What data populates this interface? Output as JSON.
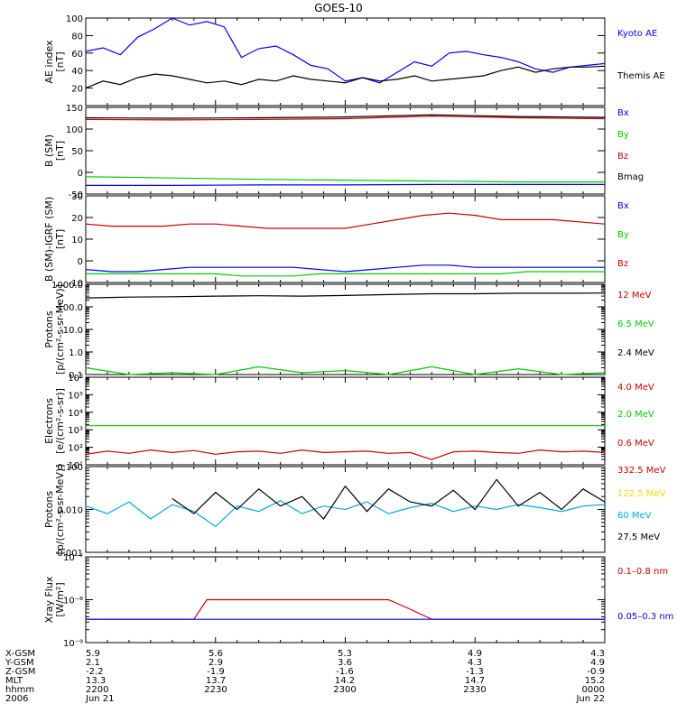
{
  "title": "GOES-10",
  "colors": {
    "black": "#000000",
    "blue": "#0000ff",
    "green": "#00cc00",
    "red": "#cc0000",
    "yellow": "#ffd700",
    "cyan": "#00aadd"
  },
  "chart_data": [
    {
      "type": "line",
      "panel": "ae",
      "ylabel": [
        "AE index",
        "[nT]"
      ],
      "ylim": [
        0,
        100
      ],
      "yticks": [
        20,
        40,
        60,
        80,
        100
      ],
      "x": [
        0,
        4,
        8,
        12,
        16,
        20,
        24,
        28,
        32,
        36,
        40,
        44,
        48,
        52,
        56,
        60,
        64,
        68,
        72,
        76,
        80,
        84,
        88,
        92,
        96,
        100,
        104,
        108,
        112,
        116,
        120
      ],
      "series": [
        {
          "name": "Kyoto AE",
          "color": "#0000ff",
          "values": [
            62,
            66,
            58,
            78,
            88,
            102,
            92,
            96,
            90,
            55,
            65,
            68,
            58,
            46,
            42,
            28,
            32,
            26,
            38,
            50,
            45,
            60,
            62,
            58,
            55,
            50,
            42,
            38,
            44,
            46,
            48
          ]
        },
        {
          "name": "Themis AE",
          "color": "#000000",
          "values": [
            20,
            28,
            24,
            32,
            36,
            34,
            30,
            26,
            28,
            24,
            30,
            28,
            34,
            30,
            28,
            26,
            32,
            28,
            30,
            34,
            28,
            30,
            32,
            34,
            40,
            44,
            38,
            42,
            44,
            44,
            45
          ]
        }
      ]
    },
    {
      "type": "line",
      "panel": "b",
      "ylabel": [
        "B (SM)",
        "[nT]"
      ],
      "ylim": [
        -50,
        150
      ],
      "yticks": [
        -50,
        0,
        50,
        100,
        150
      ],
      "yticklabels": [
        "-50",
        "0",
        "50",
        "100",
        "150"
      ],
      "x": [
        0,
        20,
        40,
        60,
        80,
        100,
        120
      ],
      "series": [
        {
          "name": "Bx",
          "color": "#0000ff",
          "values": [
            -30,
            -30,
            -29,
            -29,
            -28,
            -28,
            -28
          ]
        },
        {
          "name": "By",
          "color": "#00cc00",
          "values": [
            -10,
            -13,
            -16,
            -18,
            -20,
            -22,
            -22
          ]
        },
        {
          "name": "Bz",
          "color": "#cc0000",
          "values": [
            122,
            121,
            122,
            124,
            130,
            126,
            124
          ]
        },
        {
          "name": "Bmag",
          "color": "#000000",
          "values": [
            126,
            125,
            126,
            128,
            133,
            129,
            127
          ]
        }
      ]
    },
    {
      "type": "line",
      "panel": "db",
      "ylabel": [
        "B (SM)-IGRF (SM)",
        "[nT]"
      ],
      "ylim": [
        -10,
        30
      ],
      "yticks": [
        -10,
        0,
        10,
        20,
        30
      ],
      "x": [
        0,
        6,
        12,
        18,
        24,
        30,
        36,
        42,
        48,
        54,
        60,
        66,
        72,
        78,
        84,
        90,
        96,
        102,
        108,
        114,
        120
      ],
      "series": [
        {
          "name": "Bx",
          "color": "#0000ff",
          "values": [
            -4,
            -5,
            -5,
            -4,
            -3,
            -3,
            -3,
            -3,
            -3,
            -4,
            -5,
            -4,
            -3,
            -2,
            -2,
            -3,
            -3,
            -3,
            -3,
            -3,
            -3
          ]
        },
        {
          "name": "By",
          "color": "#00cc00",
          "values": [
            -6,
            -6,
            -6,
            -6,
            -6,
            -6,
            -7,
            -7,
            -7,
            -6,
            -6,
            -6,
            -6,
            -6,
            -6,
            -6,
            -6,
            -5,
            -5,
            -5,
            -5
          ]
        },
        {
          "name": "Bz",
          "color": "#cc0000",
          "values": [
            17,
            16,
            16,
            16,
            17,
            17,
            16,
            15,
            15,
            15,
            15,
            17,
            19,
            21,
            22,
            21,
            19,
            19,
            19,
            18,
            17
          ]
        }
      ]
    },
    {
      "type": "line",
      "panel": "protons",
      "ylabel": [
        "Protons",
        "[p/(cm²-s-sr-MeV)]"
      ],
      "yscale": "log",
      "ylim": [
        0.1,
        1000
      ],
      "yticks": [
        0.1,
        1,
        10,
        100,
        1000
      ],
      "yticklabels": [
        "0.1",
        "1.0",
        "10.0",
        "100.0",
        "1000.0"
      ],
      "x": [
        0,
        10,
        20,
        30,
        40,
        50,
        60,
        70,
        80,
        90,
        100,
        110,
        120
      ],
      "series": [
        {
          "name": "12 MeV",
          "color": "#cc0000",
          "values": [
            null,
            null,
            null,
            null,
            null,
            null,
            null,
            null,
            null,
            null,
            null,
            null,
            null
          ]
        },
        {
          "name": "6.5 MeV",
          "color": "#00cc00",
          "values": [
            0.2,
            0.1,
            0.12,
            0.1,
            0.22,
            0.12,
            0.15,
            0.1,
            0.22,
            0.1,
            0.18,
            0.1,
            0.12
          ]
        },
        {
          "name": "2.4 MeV",
          "color": "#000000",
          "values": [
            250,
            270,
            280,
            300,
            310,
            300,
            320,
            350,
            380,
            380,
            400,
            400,
            410
          ]
        }
      ]
    },
    {
      "type": "line",
      "panel": "electrons",
      "ylabel": [
        "Electrons",
        "[e/(cm²-s-sr)]"
      ],
      "yscale": "log",
      "ylim": [
        10,
        1000000
      ],
      "yticks": [
        10,
        100,
        1000,
        10000,
        100000,
        1000000
      ],
      "yticklabels": [
        "10¹",
        "10²",
        "10³",
        "10⁴",
        "10⁵",
        "10⁶"
      ],
      "x": [
        0,
        5,
        10,
        15,
        20,
        25,
        30,
        35,
        40,
        45,
        50,
        55,
        60,
        65,
        70,
        75,
        80,
        85,
        90,
        95,
        100,
        105,
        110,
        115,
        120
      ],
      "series": [
        {
          "name": "4.0 MeV",
          "color": "#cc0000",
          "values": [
            null,
            null,
            null,
            null,
            null,
            null,
            null,
            null,
            null,
            null,
            null,
            null,
            null,
            null,
            null,
            null,
            null,
            null,
            null,
            null,
            null,
            null,
            null,
            null,
            null
          ]
        },
        {
          "name": "2.0 MeV",
          "color": "#00cc00",
          "values": [
            1700,
            1700,
            1700,
            1700,
            1700,
            1700,
            1700,
            1700,
            1700,
            1700,
            1700,
            1700,
            1700,
            1700,
            1700,
            1700,
            1700,
            1700,
            1700,
            1700,
            1700,
            1700,
            1700,
            1700,
            1700
          ]
        },
        {
          "name": "0.6 MeV",
          "color": "#cc0000",
          "values": [
            40,
            60,
            45,
            70,
            50,
            65,
            40,
            55,
            60,
            45,
            70,
            50,
            55,
            60,
            45,
            50,
            20,
            55,
            60,
            50,
            45,
            70,
            55,
            60,
            50
          ]
        }
      ]
    },
    {
      "type": "line",
      "panel": "hiprotons",
      "ylabel": [
        "Protons",
        "[p/(cm²-s-sr-MeV)]"
      ],
      "yscale": "log",
      "ylim": [
        0.001,
        0.1
      ],
      "yticks": [
        0.001,
        0.01,
        0.1
      ],
      "yticklabels": [
        "0.001",
        "0.010",
        "0.100"
      ],
      "x": [
        0,
        5,
        10,
        15,
        20,
        25,
        30,
        35,
        40,
        45,
        50,
        55,
        60,
        65,
        70,
        75,
        80,
        85,
        90,
        95,
        100,
        105,
        110,
        115,
        120
      ],
      "series": [
        {
          "name": "332.5 MeV",
          "color": "#cc0000",
          "values": [
            null,
            null,
            null,
            null,
            null,
            null,
            null,
            null,
            null,
            null,
            null,
            null,
            null,
            null,
            null,
            null,
            null,
            null,
            null,
            null,
            null,
            null,
            null,
            null,
            null
          ]
        },
        {
          "name": "122.5 MeV",
          "color": "#ffd700",
          "values": [
            null,
            null,
            null,
            null,
            null,
            null,
            null,
            null,
            null,
            null,
            null,
            null,
            null,
            null,
            null,
            null,
            null,
            null,
            null,
            null,
            null,
            null,
            null,
            null,
            null
          ]
        },
        {
          "name": "60 MeV",
          "color": "#00aadd",
          "values": [
            0.012,
            0.008,
            0.015,
            0.006,
            0.013,
            0.009,
            0.004,
            0.012,
            0.009,
            0.016,
            0.008,
            0.012,
            0.01,
            0.015,
            0.008,
            0.011,
            0.014,
            0.009,
            0.012,
            0.01,
            0.013,
            0.011,
            0.009,
            0.012,
            0.013
          ]
        },
        {
          "name": "27.5 MeV",
          "color": "#000000",
          "values": [
            null,
            null,
            null,
            null,
            0.018,
            0.008,
            0.025,
            0.01,
            0.03,
            0.012,
            0.02,
            0.006,
            0.035,
            0.009,
            0.03,
            0.015,
            0.012,
            0.028,
            0.01,
            0.05,
            0.012,
            0.025,
            0.01,
            0.03,
            0.015
          ]
        }
      ]
    },
    {
      "type": "line",
      "panel": "xray",
      "ylabel": [
        "Xray Flux",
        "[W/m²]"
      ],
      "yscale": "log",
      "ylim": [
        1e-09,
        1e-07
      ],
      "yticks": [
        1e-09,
        1e-08,
        1e-07
      ],
      "yticklabels": [
        "10⁻⁹",
        "10⁻⁸",
        "10⁻⁷"
      ],
      "x": [
        0,
        10,
        20,
        25,
        28,
        40,
        60,
        70,
        75,
        80,
        90,
        100,
        110,
        120
      ],
      "series": [
        {
          "name": "0.1–0.8 nm",
          "color": "#cc0000",
          "values": [
            3.5e-09,
            3.5e-09,
            3.5e-09,
            3.5e-09,
            1e-08,
            1e-08,
            1e-08,
            1e-08,
            6e-09,
            3.5e-09,
            3.5e-09,
            3.5e-09,
            3.5e-09,
            3.5e-09
          ]
        },
        {
          "name": "0.05–0.3 nm",
          "color": "#0000ff",
          "values": [
            3.5e-09,
            3.5e-09,
            3.5e-09,
            3.5e-09,
            3.5e-09,
            3.5e-09,
            3.5e-09,
            3.5e-09,
            3.5e-09,
            3.5e-09,
            3.5e-09,
            3.5e-09,
            3.5e-09,
            3.5e-09
          ]
        }
      ]
    }
  ],
  "orbit_table": {
    "row_labels": [
      "X-GSM",
      "Y-GSM",
      "Z-GSM",
      "MLT",
      "hhmm",
      "2006"
    ],
    "columns": [
      [
        "5.9",
        "2.1",
        "-2.2",
        "13.3",
        "2200",
        "Jun 21"
      ],
      [
        "5.6",
        "2.9",
        "-1.9",
        "13.7",
        "2230",
        ""
      ],
      [
        "5.3",
        "3.6",
        "-1.6",
        "14.2",
        "2300",
        ""
      ],
      [
        "4.9",
        "4.3",
        "-1.3",
        "14.7",
        "2330",
        ""
      ],
      [
        "4.3",
        "4.9",
        "-0.9",
        "15.2",
        "0000",
        "Jun 22"
      ]
    ]
  },
  "legend_labels": {
    "ae": [
      "Kyoto AE",
      "Themis AE"
    ],
    "b": [
      "Bx",
      "By",
      "Bz",
      "Bmag"
    ],
    "db": [
      "Bx",
      "By",
      "Bz"
    ],
    "protons": [
      "12 MeV",
      "6.5 MeV",
      "2.4 MeV"
    ],
    "electrons": [
      "4.0 MeV",
      "2.0 MeV",
      "0.6 MeV"
    ],
    "hiprotons": [
      "332.5 MeV",
      "122.5 MeV",
      "60 MeV",
      "27.5 MeV"
    ],
    "xray": [
      "0.1–0.8 nm",
      "0.05–0.3 nm"
    ]
  }
}
